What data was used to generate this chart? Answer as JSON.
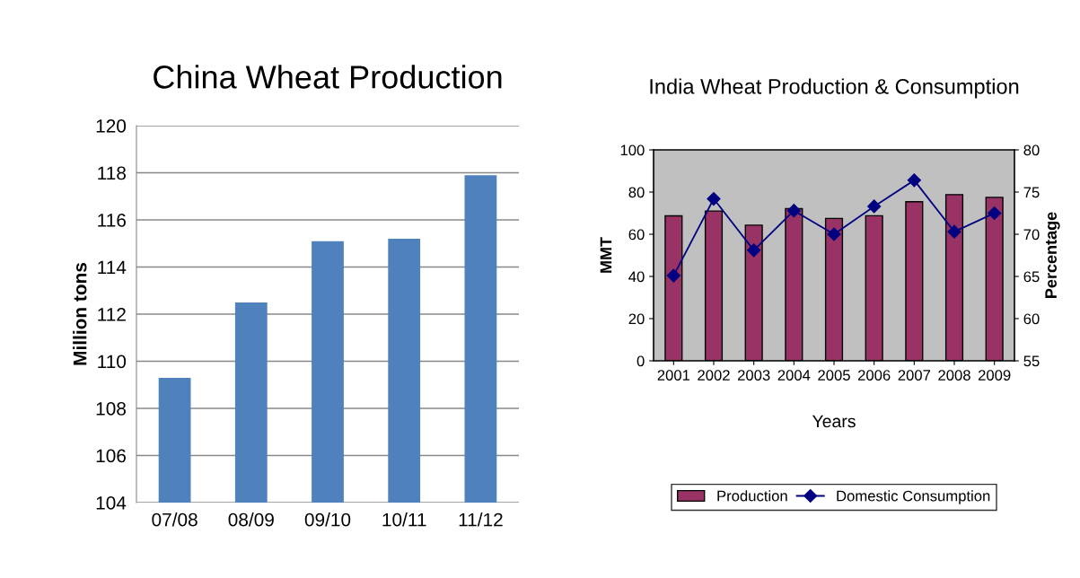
{
  "chart_data": [
    {
      "type": "bar",
      "title": "China Wheat Production",
      "ylabel": "Million tons",
      "categories": [
        "07/08",
        "08/09",
        "09/10",
        "10/11",
        "11/12"
      ],
      "series": [
        {
          "color": "#4f81bd",
          "values": [
            109.3,
            112.5,
            115.1,
            115.2,
            117.9
          ]
        }
      ],
      "ylim": [
        104,
        120
      ],
      "yticks": [
        104,
        106,
        108,
        110,
        112,
        114,
        116,
        118,
        120
      ],
      "grid": "y",
      "legend": false
    },
    {
      "type": "bar",
      "title": "India Wheat Production & Consumption",
      "xlabel": "Years",
      "ylabel": "MMT",
      "y2label": "Percentage",
      "categories": [
        "2001",
        "2002",
        "2003",
        "2004",
        "2005",
        "2006",
        "2007",
        "2008",
        "2009"
      ],
      "series": [
        {
          "name": "Production",
          "color": "#993366",
          "values": [
            68.7,
            71,
            64.3,
            72.2,
            67.5,
            68.8,
            75.4,
            78.8,
            77.5
          ]
        },
        {
          "name": "Domestic Consumption",
          "type": "line",
          "axis": "y2",
          "color": "#000080",
          "marker": "diamond",
          "values": [
            65.1,
            74.2,
            68.1,
            72.8,
            70.0,
            73.3,
            76.4,
            70.3,
            72.5
          ]
        }
      ],
      "ylim": [
        0,
        100
      ],
      "yticks": [
        0,
        20,
        40,
        60,
        80,
        100
      ],
      "y2lim": [
        55,
        80
      ],
      "y2ticks": [
        55,
        60,
        65,
        70,
        75,
        80
      ],
      "grid": false,
      "legend": "bottom"
    }
  ]
}
